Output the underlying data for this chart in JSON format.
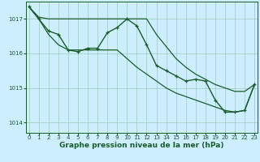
{
  "background_color": "#cceeff",
  "grid_color": "#99ccbb",
  "line_color": "#1a5c2a",
  "xlabel": "Graphe pression niveau de la mer (hPa)",
  "xlabel_fontsize": 6.5,
  "tick_fontsize": 5.0,
  "ylim": [
    1013.7,
    1017.5
  ],
  "xlim": [
    -0.3,
    23.3
  ],
  "yticks": [
    1014,
    1015,
    1016,
    1017
  ],
  "xticks": [
    0,
    1,
    2,
    3,
    4,
    5,
    6,
    7,
    8,
    9,
    10,
    11,
    12,
    13,
    14,
    15,
    16,
    17,
    18,
    19,
    20,
    21,
    22,
    23
  ],
  "series": [
    {
      "x": [
        0,
        1,
        2,
        3,
        4,
        5,
        6,
        7,
        8,
        9,
        10,
        11,
        12,
        13,
        14,
        15,
        16,
        17,
        18,
        19,
        20,
        21,
        22,
        23
      ],
      "y": [
        1017.35,
        1017.05,
        1017.0,
        1017.0,
        1017.0,
        1017.0,
        1017.0,
        1017.0,
        1017.0,
        1017.0,
        1017.0,
        1017.0,
        1017.0,
        1016.55,
        1016.2,
        1015.85,
        1015.6,
        1015.4,
        1015.25,
        1015.1,
        1015.0,
        1014.9,
        1014.9,
        1015.1
      ],
      "marker": null,
      "linewidth": 0.9
    },
    {
      "x": [
        0,
        1,
        2,
        3,
        4,
        5,
        6,
        7,
        8,
        9,
        10,
        11,
        12,
        13,
        14,
        15,
        16,
        17,
        18,
        19,
        20,
        21,
        22,
        23
      ],
      "y": [
        1017.35,
        1017.0,
        1016.55,
        1016.25,
        1016.1,
        1016.1,
        1016.1,
        1016.1,
        1016.1,
        1016.1,
        1015.85,
        1015.6,
        1015.4,
        1015.2,
        1015.0,
        1014.85,
        1014.75,
        1014.65,
        1014.55,
        1014.45,
        1014.35,
        1014.3,
        1014.35,
        1015.1
      ],
      "marker": null,
      "linewidth": 0.9
    },
    {
      "x": [
        0,
        1,
        2,
        3,
        4,
        5,
        6,
        7,
        8,
        9,
        10,
        11,
        12,
        13,
        14,
        15,
        16,
        17,
        18,
        19,
        20,
        21,
        22,
        23
      ],
      "y": [
        1017.35,
        1017.0,
        1016.65,
        1016.55,
        1016.1,
        1016.05,
        1016.15,
        1016.15,
        1016.6,
        1016.75,
        1017.0,
        1016.8,
        1016.25,
        1015.65,
        1015.5,
        1015.35,
        1015.2,
        1015.25,
        1015.2,
        1014.65,
        1014.3,
        1014.3,
        1014.35,
        1015.1
      ],
      "marker": "+",
      "linewidth": 1.0
    }
  ]
}
